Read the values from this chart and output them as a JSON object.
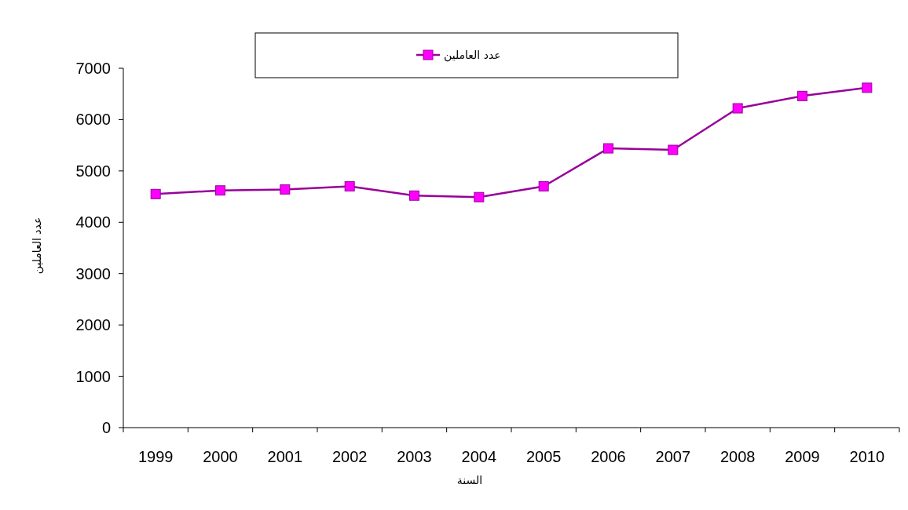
{
  "chart_data": {
    "type": "line",
    "xlabel": "السنة",
    "ylabel": "عدد العاملين",
    "categories": [
      "1999",
      "2000",
      "2001",
      "2002",
      "2003",
      "2004",
      "2005",
      "2006",
      "2007",
      "2008",
      "2009",
      "2010"
    ],
    "series": [
      {
        "name": "عدد العاملين",
        "color": "#990099",
        "colors": [
          "#ff00ff",
          "#ff00ff",
          "#ff00ff",
          "#ff00ff",
          "#ff00ff",
          "#ff00ff",
          "#ff00ff",
          "#ff00ff",
          "#ff00ff",
          "#ff00ff",
          "#ff00ff",
          "#ff00ff"
        ],
        "values": [
          4550,
          4620,
          4640,
          4700,
          4520,
          4490,
          4700,
          5440,
          5410,
          6220,
          6460,
          6620
        ]
      }
    ],
    "ylim": [
      0,
      7000
    ],
    "yticks": [
      0,
      1000,
      2000,
      3000,
      4000,
      5000,
      6000,
      7000
    ],
    "marker": "square",
    "line_style": "solid",
    "legend": "top",
    "grid": false
  }
}
